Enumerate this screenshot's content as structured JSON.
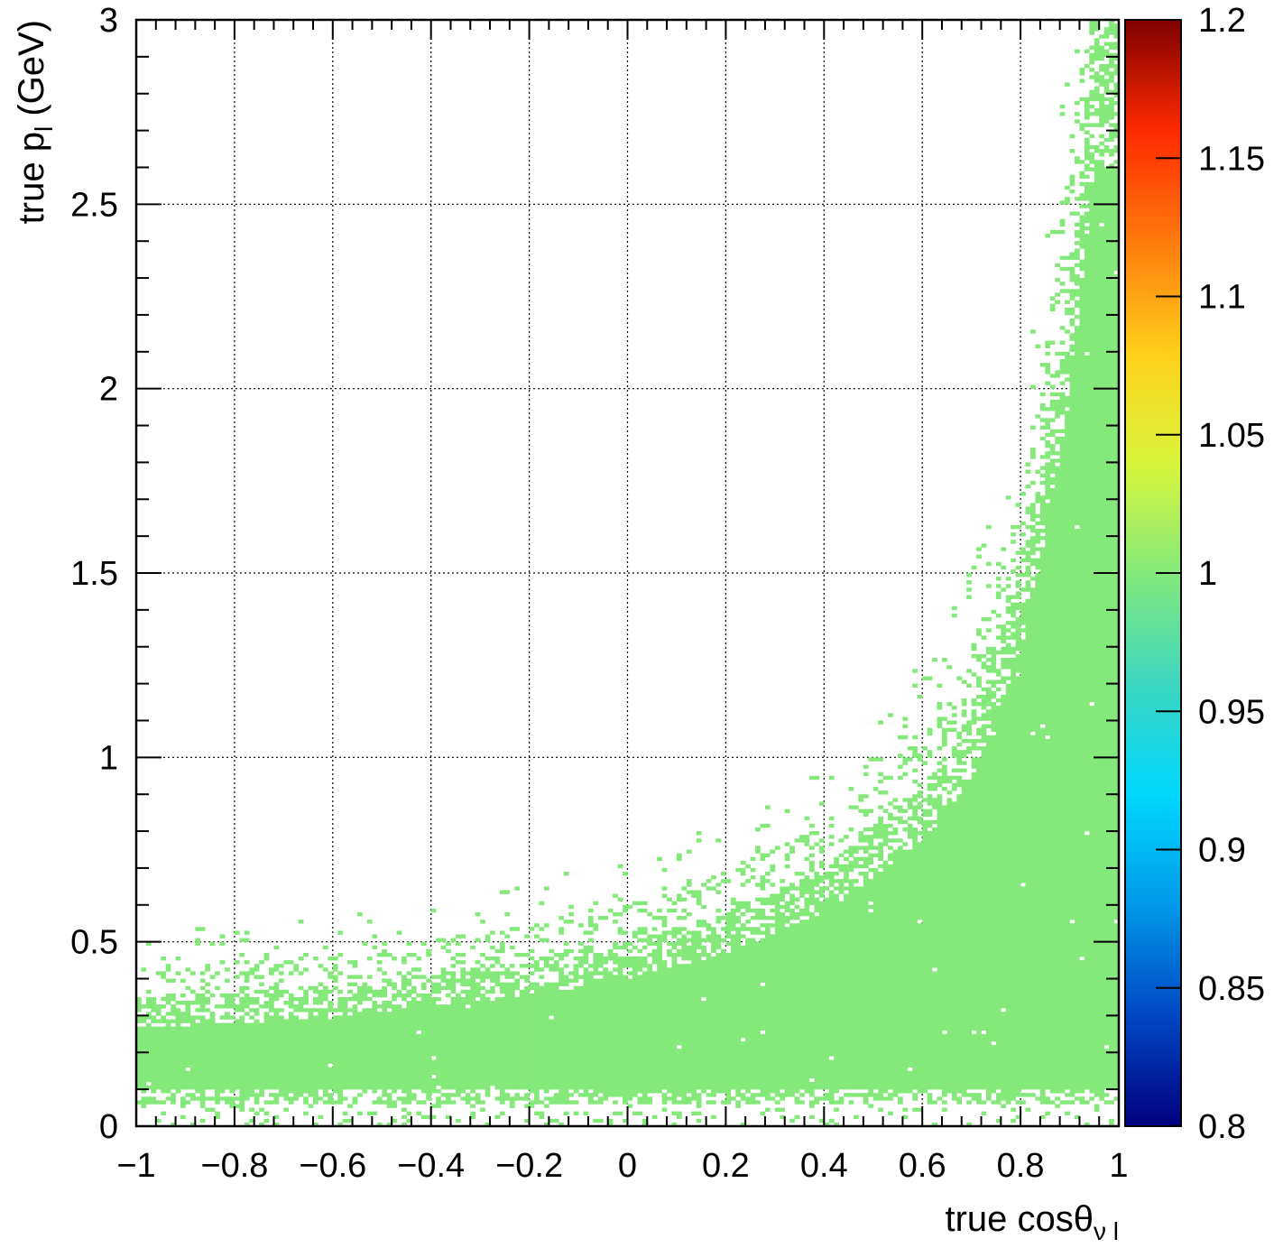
{
  "chart_data": {
    "type": "heatmap",
    "xlabel": {
      "main": "true cosθ",
      "sub": "ν l"
    },
    "ylabel": {
      "main": "true p",
      "sub": "l",
      "unit": " (GeV)"
    },
    "xlim": [
      -1,
      1
    ],
    "ylim": [
      0,
      3
    ],
    "x_ticks": [
      {
        "v": -1,
        "label": "−1"
      },
      {
        "v": -0.8,
        "label": "−0.8"
      },
      {
        "v": -0.6,
        "label": "−0.6"
      },
      {
        "v": -0.4,
        "label": "−0.4"
      },
      {
        "v": -0.2,
        "label": "−0.2"
      },
      {
        "v": 0,
        "label": "0"
      },
      {
        "v": 0.2,
        "label": "0.2"
      },
      {
        "v": 0.4,
        "label": "0.4"
      },
      {
        "v": 0.6,
        "label": "0.6"
      },
      {
        "v": 0.8,
        "label": "0.8"
      },
      {
        "v": 1,
        "label": "1"
      }
    ],
    "y_ticks": [
      {
        "v": 0,
        "label": "0"
      },
      {
        "v": 0.5,
        "label": "0.5"
      },
      {
        "v": 1,
        "label": "1"
      },
      {
        "v": 1.5,
        "label": "1.5"
      },
      {
        "v": 2,
        "label": "2"
      },
      {
        "v": 2.5,
        "label": "2.5"
      },
      {
        "v": 3,
        "label": "3"
      }
    ],
    "grid": true,
    "bins": {
      "nx": 200,
      "ny": 300
    },
    "cell_value": 1.0,
    "cell_color": "#84e97a",
    "region": {
      "description_points_x": [
        -1.0,
        -0.6,
        -0.2,
        0.0,
        0.2,
        0.4,
        0.6,
        0.7,
        0.8,
        0.85,
        0.9,
        0.95,
        1.0
      ],
      "upper_boundary_p": [
        0.35,
        0.38,
        0.45,
        0.5,
        0.58,
        0.7,
        0.92,
        1.12,
        1.5,
        1.85,
        2.3,
        3.0,
        3.0
      ],
      "lower_boundary_p": [
        0.1,
        0.1,
        0.1,
        0.1,
        0.1,
        0.1,
        0.1,
        0.1,
        0.1,
        0.1,
        0.1,
        0.1,
        0.1
      ]
    },
    "colorbar": {
      "range": [
        0.8,
        1.2
      ],
      "ticks": [
        {
          "v": 0.8,
          "label": "0.8"
        },
        {
          "v": 0.85,
          "label": "0.85"
        },
        {
          "v": 0.9,
          "label": "0.9"
        },
        {
          "v": 0.95,
          "label": "0.95"
        },
        {
          "v": 1.0,
          "label": "1"
        },
        {
          "v": 1.05,
          "label": "1.05"
        },
        {
          "v": 1.1,
          "label": "1.1"
        },
        {
          "v": 1.15,
          "label": "1.15"
        },
        {
          "v": 1.2,
          "label": "1.2"
        }
      ],
      "palette": [
        "#00007f",
        "#0047c4",
        "#0099e8",
        "#00d8ff",
        "#3cd6c0",
        "#84e97a",
        "#d9f53a",
        "#ffcf1a",
        "#ff7a0d",
        "#ff2a00",
        "#7f0000"
      ]
    }
  }
}
